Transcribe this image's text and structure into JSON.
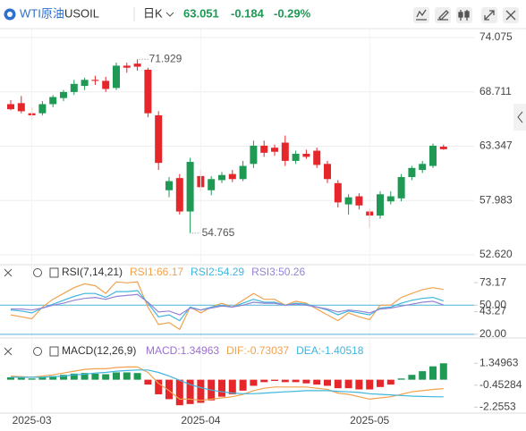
{
  "header": {
    "name": "WTI原油",
    "symbol": "USOIL",
    "period": "日K",
    "price": "63.051",
    "change": "-0.184",
    "change_pct": "-0.29%"
  },
  "chart_data": [
    {
      "type": "candlestick",
      "up_color": "#1e9a55",
      "down_color": "#e5262a",
      "grid": true,
      "categories": [
        null,
        null,
        "2025-03",
        null,
        null,
        null,
        null,
        null,
        null,
        null,
        null,
        null,
        null,
        null,
        null,
        null,
        null,
        null,
        "2025-04",
        null,
        null,
        null,
        null,
        null,
        null,
        null,
        null,
        null,
        null,
        null,
        null,
        null,
        null,
        null,
        "2025-05",
        null,
        null,
        null,
        null,
        null,
        null,
        null
      ],
      "open": [
        67.5,
        67.6,
        66.6,
        66.6,
        67.5,
        68.1,
        68.7,
        69.3,
        69.9,
        69.8,
        69.1,
        71.3,
        71.5,
        70.9,
        66.4,
        59.0,
        60.2,
        56.9,
        60.4,
        59.0,
        60.0,
        60.6,
        60.1,
        61.6,
        63.4,
        63.2,
        63.7,
        61.9,
        62.6,
        62.9,
        61.6,
        59.7,
        57.6,
        58.4,
        56.9,
        56.5,
        57.9,
        58.2,
        60.3,
        61.0,
        61.4,
        63.3
      ],
      "high": [
        67.9,
        68.3,
        67.2,
        67.8,
        68.4,
        68.9,
        69.9,
        70.1,
        70.3,
        70.2,
        71.6,
        71.6,
        71.929,
        71.1,
        66.8,
        60.3,
        60.6,
        62.2,
        61.0,
        60.4,
        60.8,
        61.0,
        61.9,
        63.9,
        63.9,
        63.5,
        64.4,
        62.9,
        63.0,
        63.2,
        61.9,
        60.0,
        58.6,
        58.7,
        57.2,
        58.9,
        58.9,
        60.6,
        61.4,
        61.9,
        63.6,
        63.5
      ],
      "low": [
        66.9,
        66.6,
        66.0,
        66.4,
        67.2,
        67.8,
        68.4,
        68.9,
        69.4,
        68.7,
        68.9,
        70.6,
        70.8,
        66.2,
        61.0,
        58.3,
        56.6,
        54.765,
        58.9,
        58.5,
        59.7,
        59.8,
        59.9,
        61.2,
        62.3,
        62.4,
        61.4,
        61.6,
        62.1,
        61.2,
        59.7,
        57.3,
        56.6,
        57.1,
        55.3,
        56.2,
        57.6,
        57.9,
        60.0,
        60.7,
        61.2,
        63.0
      ],
      "close": [
        67.0,
        66.8,
        66.4,
        67.5,
        68.2,
        68.7,
        69.5,
        69.9,
        69.8,
        69.0,
        71.3,
        71.1,
        71.2,
        66.6,
        61.7,
        59.9,
        56.9,
        61.8,
        59.3,
        60.1,
        60.5,
        60.1,
        61.4,
        63.4,
        62.7,
        62.8,
        61.9,
        62.6,
        62.3,
        61.5,
        60.1,
        57.8,
        58.3,
        57.5,
        56.5,
        58.6,
        58.4,
        60.3,
        61.2,
        61.6,
        63.4,
        63.051
      ],
      "ylim": [
        52.62,
        74.075
      ],
      "yticks": [
        74.075,
        68.711,
        63.347,
        57.983,
        {
          "value": 52.62,
          "label": "52.620"
        }
      ]
    },
    {
      "type": "line",
      "title": "RSI(7,14,21)",
      "ylim": [
        18,
        88
      ],
      "yticks": [
        73.17,
        {
          "value": 50,
          "label": "50.00"
        },
        43.27,
        {
          "value": 20,
          "label": "20.00"
        }
      ],
      "hlines": [
        50,
        20
      ],
      "hline_color": "#4fb3d9",
      "series": [
        {
          "name": "RSI1:66.17",
          "color": "#f0a24e",
          "values": [
            40,
            38,
            36,
            48,
            56,
            62,
            68,
            72,
            70,
            62,
            74,
            73,
            74,
            48,
            30,
            32,
            25,
            48,
            42,
            48,
            52,
            48,
            55,
            62,
            56,
            56,
            50,
            54,
            52,
            46,
            40,
            34,
            42,
            38,
            35,
            50,
            50,
            58,
            62,
            66,
            68,
            66.17
          ]
        },
        {
          "name": "RSI2:54.29",
          "color": "#3fb6de",
          "values": [
            45,
            44,
            42,
            47,
            51,
            55,
            59,
            62,
            62,
            58,
            64,
            64,
            65,
            52,
            38,
            40,
            34,
            48,
            45,
            48,
            50,
            48,
            52,
            56,
            53,
            53,
            50,
            52,
            51,
            48,
            45,
            40,
            44,
            42,
            40,
            47,
            48,
            52,
            55,
            57,
            58,
            54.29
          ]
        },
        {
          "name": "RSI3:50.26",
          "color": "#9584d4",
          "values": [
            46,
            46,
            45,
            47,
            50,
            52,
            55,
            57,
            58,
            56,
            59,
            60,
            61,
            53,
            43,
            44,
            40,
            47,
            45,
            47,
            49,
            48,
            50,
            53,
            52,
            52,
            50,
            51,
            50,
            48,
            46,
            43,
            45,
            44,
            42,
            46,
            47,
            49,
            51,
            53,
            54,
            50.26
          ]
        }
      ]
    },
    {
      "type": "combo",
      "title": "MACD(12,26,9)",
      "ylim": [
        -2.6,
        2.4
      ],
      "yticks": [
        1.34963,
        -0.45284,
        -2.2553
      ],
      "up_color": "#1e9a55",
      "down_color": "#e5262a",
      "series": [
        {
          "name": "MACD:1.34963",
          "kind": "bar",
          "color": "#9b6fd0",
          "values": [
            0.2,
            0.15,
            0.1,
            0.2,
            0.3,
            0.4,
            0.5,
            0.55,
            0.5,
            0.45,
            0.6,
            0.6,
            0.55,
            -0.4,
            -1.2,
            -1.6,
            -2.1,
            -2.0,
            -1.9,
            -1.7,
            -1.4,
            -1.2,
            -0.9,
            -0.5,
            -0.2,
            -0.1,
            -0.2,
            -0.2,
            -0.3,
            -0.4,
            -0.5,
            -0.7,
            -0.7,
            -0.8,
            -0.8,
            -0.6,
            -0.4,
            0.1,
            0.4,
            0.7,
            1.1,
            1.34963
          ]
        },
        {
          "name": "DIF:-0.73037",
          "kind": "line",
          "color": "#f0a24e",
          "values": [
            0.3,
            0.25,
            0.2,
            0.3,
            0.4,
            0.55,
            0.7,
            0.85,
            0.9,
            0.9,
            1.0,
            1.05,
            1.05,
            0.6,
            -0.3,
            -0.9,
            -1.6,
            -1.6,
            -1.7,
            -1.6,
            -1.5,
            -1.4,
            -1.2,
            -0.9,
            -0.7,
            -0.6,
            -0.6,
            -0.6,
            -0.6,
            -0.7,
            -0.8,
            -1.1,
            -1.2,
            -1.4,
            -1.6,
            -1.5,
            -1.4,
            -1.2,
            -1.0,
            -0.9,
            -0.8,
            -0.73037
          ]
        },
        {
          "name": "DEA:-1.40518",
          "kind": "line",
          "color": "#3fb6de",
          "values": [
            0.2,
            0.2,
            0.2,
            0.2,
            0.25,
            0.3,
            0.4,
            0.45,
            0.55,
            0.6,
            0.7,
            0.75,
            0.8,
            0.8,
            0.6,
            0.3,
            -0.05,
            -0.4,
            -0.65,
            -0.85,
            -1.0,
            -1.1,
            -1.15,
            -1.15,
            -1.1,
            -1.05,
            -1.0,
            -0.95,
            -0.9,
            -0.9,
            -0.9,
            -0.95,
            -1.0,
            -1.05,
            -1.15,
            -1.2,
            -1.25,
            -1.3,
            -1.35,
            -1.38,
            -1.4,
            -1.40518
          ]
        }
      ]
    }
  ]
}
